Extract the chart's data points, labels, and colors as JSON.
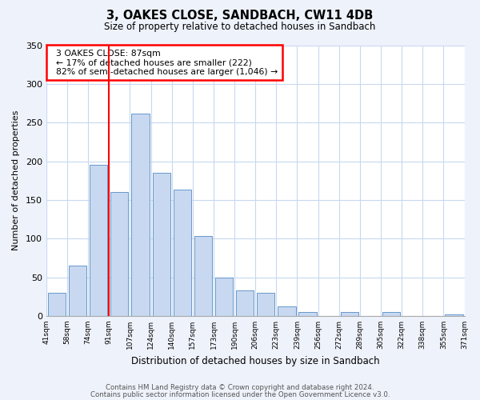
{
  "title": "3, OAKES CLOSE, SANDBACH, CW11 4DB",
  "subtitle": "Size of property relative to detached houses in Sandbach",
  "xlabel": "Distribution of detached houses by size in Sandbach",
  "ylabel": "Number of detached properties",
  "bin_labels": [
    "41sqm",
    "58sqm",
    "74sqm",
    "91sqm",
    "107sqm",
    "124sqm",
    "140sqm",
    "157sqm",
    "173sqm",
    "190sqm",
    "206sqm",
    "223sqm",
    "239sqm",
    "256sqm",
    "272sqm",
    "289sqm",
    "305sqm",
    "322sqm",
    "338sqm",
    "355sqm",
    "371sqm"
  ],
  "bar_heights": [
    30,
    65,
    195,
    160,
    262,
    185,
    163,
    103,
    50,
    33,
    30,
    12,
    5,
    0,
    5,
    0,
    5,
    0,
    0,
    2
  ],
  "bar_color": "#c8d8f0",
  "bar_edge_color": "#6699cc",
  "annotation_line1": "3 OAKES CLOSE: 87sqm",
  "annotation_line2": "← 17% of detached houses are smaller (222)",
  "annotation_line3": "82% of semi-detached houses are larger (1,046) →",
  "ylim": [
    0,
    350
  ],
  "yticks": [
    0,
    50,
    100,
    150,
    200,
    250,
    300,
    350
  ],
  "footer_line1": "Contains HM Land Registry data © Crown copyright and database right 2024.",
  "footer_line2": "Contains public sector information licensed under the Open Government Licence v3.0.",
  "background_color": "#eef2fb",
  "plot_background_color": "#ffffff",
  "grid_color": "#c8d8f0"
}
